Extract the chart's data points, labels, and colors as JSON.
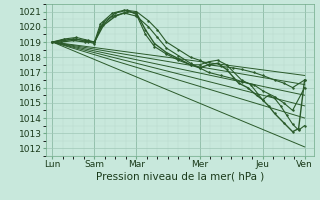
{
  "bg_color": "#c8e8dc",
  "grid_color_major": "#a0c8b8",
  "grid_color_minor": "#b8d8cc",
  "line_color": "#2a5a2a",
  "title": "Pression niveau de la mer( hPa )",
  "ylim": [
    1011.5,
    1021.5
  ],
  "yticks": [
    1012,
    1013,
    1014,
    1015,
    1016,
    1017,
    1018,
    1019,
    1020,
    1021
  ],
  "xtick_labels": [
    "Lun",
    "Sam",
    "Mar",
    "Mer",
    "Jeu",
    "Ven"
  ],
  "xtick_positions": [
    0,
    14,
    28,
    49,
    70,
    84
  ],
  "xlim": [
    -2,
    87
  ],
  "lines": [
    {
      "x": [
        0,
        84
      ],
      "y": [
        1019.0,
        1016.8
      ],
      "marker": null,
      "lw": 0.7
    },
    {
      "x": [
        0,
        84
      ],
      "y": [
        1019.0,
        1016.2
      ],
      "marker": null,
      "lw": 0.7
    },
    {
      "x": [
        0,
        84
      ],
      "y": [
        1019.0,
        1015.5
      ],
      "marker": null,
      "lw": 0.7
    },
    {
      "x": [
        0,
        84
      ],
      "y": [
        1019.0,
        1014.8
      ],
      "marker": null,
      "lw": 0.7
    },
    {
      "x": [
        0,
        84
      ],
      "y": [
        1019.0,
        1014.0
      ],
      "marker": null,
      "lw": 0.7
    },
    {
      "x": [
        0,
        84
      ],
      "y": [
        1019.0,
        1012.1
      ],
      "marker": null,
      "lw": 0.7
    },
    {
      "x": [
        0,
        4,
        8,
        12,
        14,
        16,
        20,
        24,
        28,
        32,
        35,
        38,
        42,
        46,
        49,
        52,
        56,
        60,
        63,
        67,
        70,
        74,
        77,
        80,
        84
      ],
      "y": [
        1019.0,
        1019.2,
        1019.3,
        1019.1,
        1019.0,
        1020.2,
        1020.9,
        1021.1,
        1021.0,
        1020.4,
        1019.8,
        1019.0,
        1018.5,
        1018.0,
        1017.8,
        1017.5,
        1017.4,
        1017.3,
        1017.2,
        1017.0,
        1016.8,
        1016.5,
        1016.3,
        1016.0,
        1016.5
      ],
      "marker": "+",
      "lw": 0.8
    },
    {
      "x": [
        0,
        4,
        8,
        12,
        14,
        16,
        20,
        24,
        28,
        32,
        35,
        38,
        42,
        46,
        49,
        52,
        56,
        60,
        63,
        67,
        70,
        74,
        77,
        80,
        84
      ],
      "y": [
        1019.0,
        1019.1,
        1019.2,
        1019.0,
        1018.9,
        1020.0,
        1020.7,
        1020.9,
        1020.7,
        1020.0,
        1019.3,
        1018.6,
        1018.1,
        1017.6,
        1017.3,
        1017.0,
        1016.8,
        1016.6,
        1016.4,
        1016.2,
        1015.8,
        1015.4,
        1015.0,
        1014.5,
        1016.0
      ],
      "marker": "+",
      "lw": 0.8
    },
    {
      "x": [
        0,
        3,
        7,
        11,
        14,
        17,
        21,
        25,
        28,
        31,
        34,
        38,
        42,
        46,
        49,
        52,
        55,
        58,
        63,
        66,
        70,
        72,
        74,
        76,
        78,
        80,
        82,
        84
      ],
      "y": [
        1019.0,
        1019.1,
        1019.2,
        1019.1,
        1019.0,
        1020.3,
        1020.9,
        1021.1,
        1020.8,
        1019.5,
        1018.7,
        1018.2,
        1017.8,
        1017.5,
        1017.5,
        1017.7,
        1017.8,
        1017.5,
        1016.5,
        1016.2,
        1015.2,
        1015.5,
        1015.3,
        1014.8,
        1014.2,
        1013.6,
        1013.2,
        1013.5
      ],
      "marker": "+",
      "lw": 0.8
    },
    {
      "x": [
        0,
        3,
        7,
        11,
        14,
        17,
        21,
        25,
        28,
        31,
        34,
        38,
        42,
        46,
        49,
        52,
        55,
        58,
        62,
        65,
        68,
        70,
        72,
        74,
        77,
        80,
        82,
        84
      ],
      "y": [
        1019.0,
        1019.0,
        1019.1,
        1019.0,
        1019.0,
        1020.1,
        1020.7,
        1021.0,
        1020.9,
        1019.8,
        1018.9,
        1018.3,
        1017.9,
        1017.5,
        1017.3,
        1017.5,
        1017.6,
        1017.2,
        1016.3,
        1016.0,
        1015.5,
        1015.2,
        1014.8,
        1014.3,
        1013.7,
        1013.1,
        1013.3,
        1016.5
      ],
      "marker": "+",
      "lw": 1.0
    }
  ]
}
